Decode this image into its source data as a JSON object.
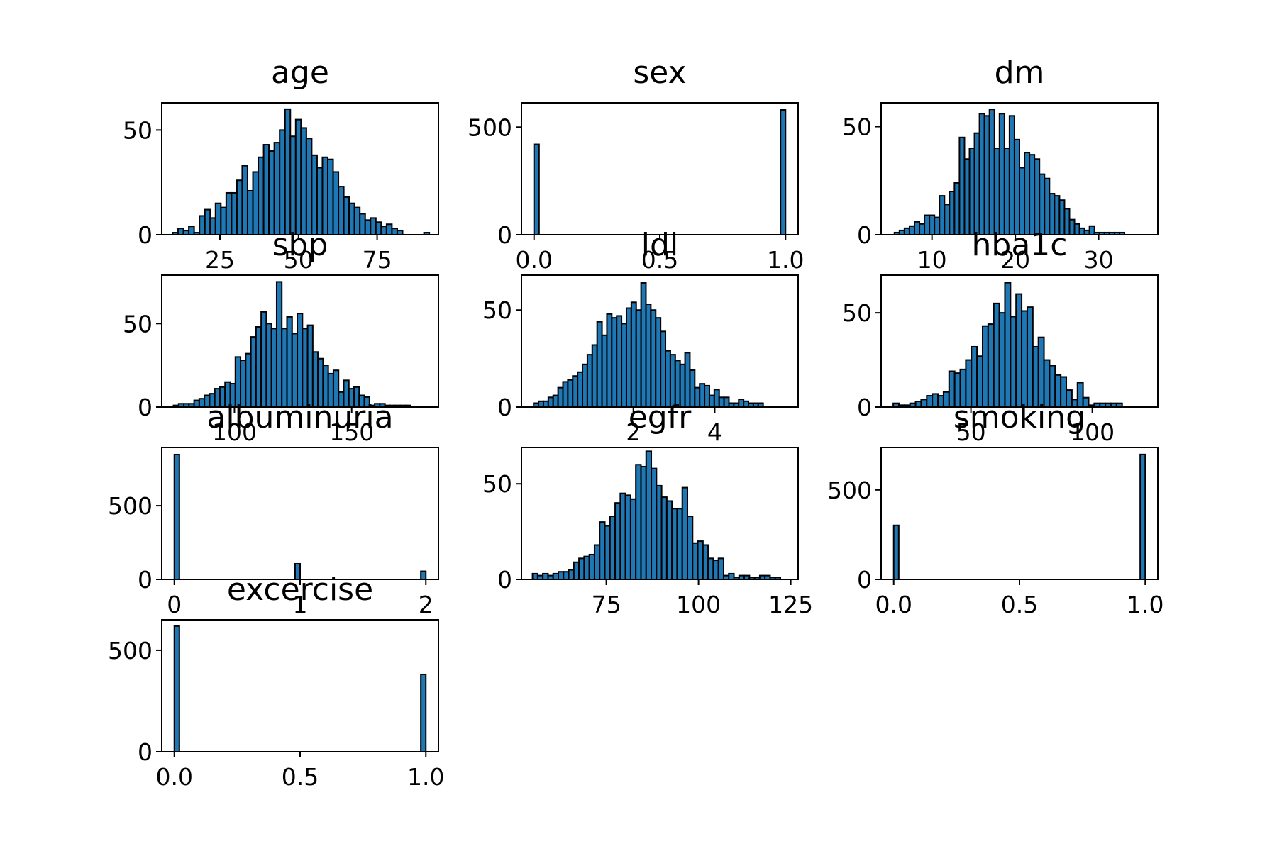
{
  "figure": {
    "background": "#ffffff",
    "bar_color": "#1f77b4",
    "edge_color": "#000000"
  },
  "chart_data": [
    {
      "type": "bar",
      "title": "age",
      "xlabel": "",
      "ylabel": "",
      "xlim": [
        6.5,
        94.5
      ],
      "ylim": [
        0,
        63
      ],
      "xticks": [
        25,
        50,
        75
      ],
      "xtick_labels": [
        "25",
        "50",
        "75"
      ],
      "yticks": [
        0,
        50
      ],
      "ytick_labels": [
        "0",
        "50"
      ],
      "bins": {
        "start": 10,
        "width": 1.7,
        "values": [
          1,
          3,
          2,
          4,
          1,
          9,
          12,
          8,
          15,
          13,
          20,
          20,
          26,
          33,
          21,
          30,
          37,
          43,
          40,
          44,
          50,
          60,
          47,
          55,
          51,
          46,
          38,
          32,
          37,
          36,
          30,
          23,
          18,
          15,
          13,
          10,
          7,
          8,
          6,
          4,
          5,
          3,
          2,
          0,
          0,
          0,
          0,
          1
        ]
      }
    },
    {
      "type": "bar",
      "title": "sex",
      "xlabel": "",
      "ylabel": "",
      "xlim": [
        -0.05,
        1.05
      ],
      "ylim": [
        0,
        613
      ],
      "xticks": [
        0,
        0.5,
        1
      ],
      "xtick_labels": [
        "0.0",
        "0.5",
        "1.0"
      ],
      "yticks": [
        0,
        500
      ],
      "ytick_labels": [
        "0",
        "500"
      ],
      "bins": {
        "start": 0,
        "width": 0.02,
        "values": [
          420,
          0,
          0,
          0,
          0,
          0,
          0,
          0,
          0,
          0,
          0,
          0,
          0,
          0,
          0,
          0,
          0,
          0,
          0,
          0,
          0,
          0,
          0,
          0,
          0,
          0,
          0,
          0,
          0,
          0,
          0,
          0,
          0,
          0,
          0,
          0,
          0,
          0,
          0,
          0,
          0,
          0,
          0,
          0,
          0,
          0,
          0,
          0,
          0,
          580
        ]
      }
    },
    {
      "type": "bar",
      "title": "dm",
      "xlabel": "",
      "ylabel": "",
      "xlim": [
        3.9,
        37.1
      ],
      "ylim": [
        0,
        61
      ],
      "xticks": [
        10,
        20,
        30
      ],
      "xtick_labels": [
        "10",
        "20",
        "30"
      ],
      "yticks": [
        0,
        50
      ],
      "ytick_labels": [
        "0",
        "50"
      ],
      "bins": {
        "start": 5.5,
        "width": 0.6,
        "values": [
          1,
          2,
          3,
          4,
          6,
          5,
          9,
          9,
          8,
          18,
          14,
          20,
          24,
          45,
          35,
          40,
          47,
          56,
          55,
          58,
          40,
          56,
          40,
          55,
          44,
          31,
          38,
          37,
          35,
          28,
          26,
          19,
          18,
          16,
          12,
          7,
          5,
          3,
          2,
          4,
          1,
          1,
          1,
          1,
          1,
          1
        ]
      }
    },
    {
      "type": "bar",
      "title": "sbp",
      "xlabel": "",
      "ylabel": "",
      "xlim": [
        69,
        187
      ],
      "ylim": [
        0,
        79
      ],
      "xticks": [
        100,
        150
      ],
      "xtick_labels": [
        "100",
        "150"
      ],
      "yticks": [
        0,
        50
      ],
      "ytick_labels": [
        "0",
        "50"
      ],
      "bins": {
        "start": 74,
        "width": 2.2,
        "values": [
          1,
          2,
          2,
          2,
          4,
          5,
          7,
          8,
          11,
          12,
          15,
          14,
          30,
          28,
          32,
          42,
          48,
          57,
          50,
          47,
          75,
          47,
          54,
          44,
          56,
          47,
          49,
          33,
          29,
          25,
          20,
          22,
          9,
          16,
          11,
          12,
          7,
          6,
          1,
          2,
          2,
          1,
          1,
          1,
          1,
          1
        ]
      }
    },
    {
      "type": "bar",
      "title": "ldl",
      "xlabel": "",
      "ylabel": "",
      "xlim": [
        -0.75,
        6.05
      ],
      "ylim": [
        0,
        68
      ],
      "xticks": [
        2,
        4
      ],
      "xtick_labels": [
        "2",
        "4"
      ],
      "yticks": [
        0,
        50
      ],
      "ytick_labels": [
        "0",
        "50"
      ],
      "bins": {
        "start": -0.45,
        "width": 0.12,
        "values": [
          2,
          3,
          3,
          5,
          6,
          10,
          13,
          14,
          16,
          18,
          22,
          27,
          32,
          44,
          37,
          48,
          46,
          47,
          43,
          51,
          54,
          50,
          64,
          53,
          50,
          46,
          39,
          29,
          27,
          24,
          22,
          28,
          19,
          10,
          12,
          11,
          6,
          9,
          5,
          5,
          2,
          2,
          4,
          3,
          2,
          2,
          2
        ]
      }
    },
    {
      "type": "bar",
      "title": "hba1c",
      "xlabel": "",
      "ylabel": "",
      "xlim": [
        13,
        127
      ],
      "ylim": [
        0,
        70
      ],
      "xticks": [
        50,
        100
      ],
      "xtick_labels": [
        "50",
        "100"
      ],
      "yticks": [
        0,
        50
      ],
      "ytick_labels": [
        "0",
        "50"
      ],
      "bins": {
        "start": 18,
        "width": 2.3,
        "values": [
          2,
          1,
          1,
          2,
          3,
          4,
          6,
          7,
          6,
          8,
          19,
          18,
          20,
          25,
          32,
          27,
          43,
          44,
          55,
          50,
          66,
          48,
          60,
          51,
          53,
          32,
          37,
          25,
          22,
          17,
          16,
          9,
          4,
          13,
          5,
          1,
          2,
          2,
          2,
          2,
          2
        ]
      }
    },
    {
      "type": "bar",
      "title": "albuminuria",
      "xlabel": "",
      "ylabel": "",
      "xlim": [
        -0.1,
        2.1
      ],
      "ylim": [
        0,
        895
      ],
      "xticks": [
        0,
        1,
        2
      ],
      "xtick_labels": [
        "0",
        "1",
        "2"
      ],
      "yticks": [
        0,
        500
      ],
      "ytick_labels": [
        "0",
        "500"
      ],
      "bins": {
        "start": 0,
        "width": 0.04,
        "values": [
          847,
          0,
          0,
          0,
          0,
          0,
          0,
          0,
          0,
          0,
          0,
          0,
          0,
          0,
          0,
          0,
          0,
          0,
          0,
          0,
          0,
          0,
          0,
          0,
          106,
          0,
          0,
          0,
          0,
          0,
          0,
          0,
          0,
          0,
          0,
          0,
          0,
          0,
          0,
          0,
          0,
          0,
          0,
          0,
          0,
          0,
          0,
          0,
          0,
          55
        ]
      }
    },
    {
      "type": "bar",
      "title": "egfr",
      "xlabel": "",
      "ylabel": "",
      "xlim": [
        52,
        127
      ],
      "ylim": [
        0,
        69
      ],
      "xticks": [
        75,
        100,
        125
      ],
      "xtick_labels": [
        "75",
        "100",
        "125"
      ],
      "yticks": [
        0,
        50
      ],
      "ytick_labels": [
        "0",
        "50"
      ],
      "bins": {
        "start": 55,
        "width": 1.4,
        "values": [
          3,
          2,
          3,
          2,
          3,
          4,
          4,
          5,
          9,
          11,
          12,
          13,
          18,
          30,
          28,
          33,
          40,
          45,
          44,
          42,
          60,
          59,
          67,
          58,
          49,
          43,
          41,
          37,
          37,
          48,
          33,
          19,
          20,
          18,
          11,
          10,
          11,
          2,
          3,
          1,
          2,
          2,
          1,
          1,
          2,
          2,
          1,
          1
        ]
      }
    },
    {
      "type": "bar",
      "title": "smoking",
      "xlabel": "",
      "ylabel": "",
      "xlim": [
        -0.05,
        1.05
      ],
      "ylim": [
        0,
        737
      ],
      "xticks": [
        0,
        0.5,
        1
      ],
      "xtick_labels": [
        "0.0",
        "0.5",
        "1.0"
      ],
      "yticks": [
        0,
        500
      ],
      "ytick_labels": [
        "0",
        "500"
      ],
      "bins": {
        "start": 0,
        "width": 0.02,
        "values": [
          302,
          0,
          0,
          0,
          0,
          0,
          0,
          0,
          0,
          0,
          0,
          0,
          0,
          0,
          0,
          0,
          0,
          0,
          0,
          0,
          0,
          0,
          0,
          0,
          0,
          0,
          0,
          0,
          0,
          0,
          0,
          0,
          0,
          0,
          0,
          0,
          0,
          0,
          0,
          0,
          0,
          0,
          0,
          0,
          0,
          0,
          0,
          0,
          0,
          698
        ]
      }
    },
    {
      "type": "bar",
      "title": "excercise",
      "xlabel": "",
      "ylabel": "",
      "xlim": [
        -0.05,
        1.05
      ],
      "ylim": [
        0,
        650
      ],
      "xticks": [
        0,
        0.5,
        1
      ],
      "xtick_labels": [
        "0.0",
        "0.5",
        "1.0"
      ],
      "yticks": [
        0,
        500
      ],
      "ytick_labels": [
        "0",
        "500"
      ],
      "bins": {
        "start": 0,
        "width": 0.02,
        "values": [
          619,
          0,
          0,
          0,
          0,
          0,
          0,
          0,
          0,
          0,
          0,
          0,
          0,
          0,
          0,
          0,
          0,
          0,
          0,
          0,
          0,
          0,
          0,
          0,
          0,
          0,
          0,
          0,
          0,
          0,
          0,
          0,
          0,
          0,
          0,
          0,
          0,
          0,
          0,
          0,
          0,
          0,
          0,
          0,
          0,
          0,
          0,
          0,
          0,
          381
        ]
      }
    }
  ]
}
